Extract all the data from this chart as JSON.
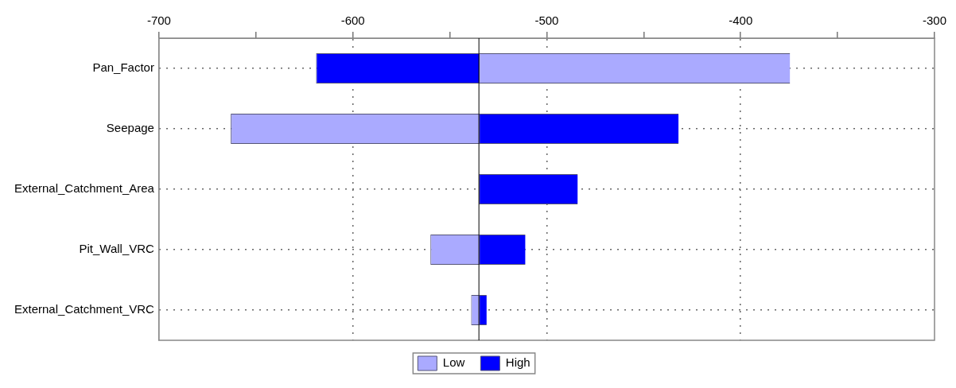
{
  "chart_data": {
    "type": "bar",
    "orientation": "horizontal",
    "categories": [
      "Pan_Factor",
      "Seepage",
      "External_Catchment_Area",
      "Pit_Wall_VRC",
      "External_Catchment_VRC"
    ],
    "series": [
      {
        "name": "Low",
        "color": "#aaaaff",
        "base": [
          -535,
          -535,
          null,
          -535,
          -535
        ],
        "values": [
          160.5,
          -128,
          null,
          -25,
          -4
        ]
      },
      {
        "name": "High",
        "color": "#0000ff",
        "base": [
          -535,
          -535,
          -535,
          -535,
          -535
        ],
        "values": [
          -84,
          103,
          51,
          24,
          4
        ]
      }
    ],
    "xlim": [
      -700,
      -300
    ],
    "xticks": [
      -700,
      {
        "value": -650,
        "label": null
      },
      -600,
      {
        "value": -550,
        "label": null
      },
      -500,
      {
        "value": -450,
        "label": null
      },
      -400,
      {
        "value": -350,
        "label": null
      },
      -300
    ],
    "ref_lines": [
      {
        "axis": "x",
        "value": -535,
        "color": "#000000"
      }
    ],
    "grid": true,
    "legend": "bottom"
  }
}
